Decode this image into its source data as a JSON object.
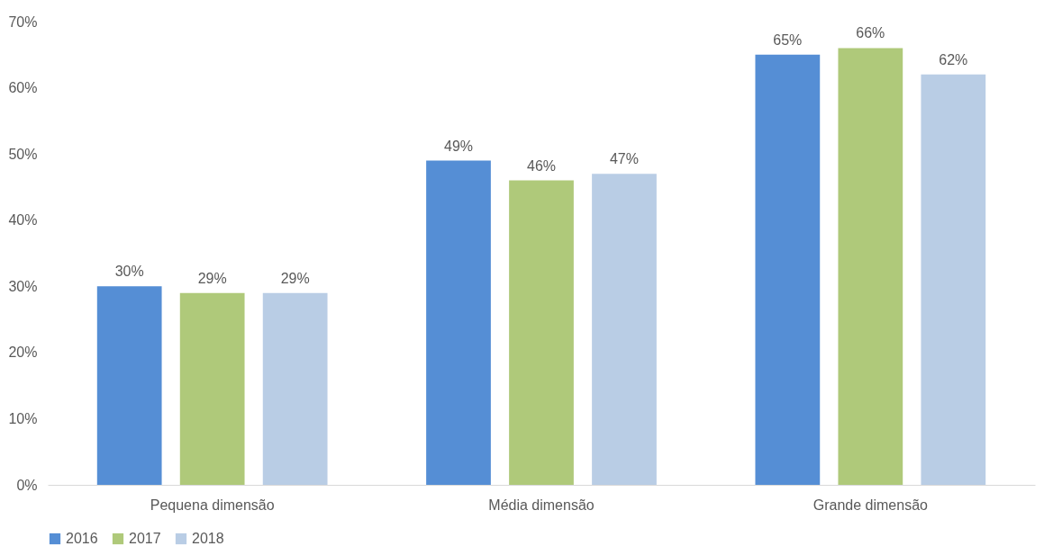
{
  "chart_data": {
    "type": "bar",
    "categories": [
      "Pequena dimensão",
      "Média dimensão",
      "Grande dimensão"
    ],
    "series": [
      {
        "name": "2016",
        "color": "#558ed5",
        "values": [
          30,
          49,
          65
        ]
      },
      {
        "name": "2017",
        "color": "#afc97a",
        "values": [
          29,
          46,
          66
        ]
      },
      {
        "name": "2018",
        "color": "#b9cde5",
        "values": [
          29,
          47,
          62
        ]
      }
    ],
    "ylim": [
      0,
      70
    ],
    "yticks": [
      {
        "value": 0,
        "label": "0%"
      },
      {
        "value": 10,
        "label": "10%"
      },
      {
        "value": 20,
        "label": "20%"
      },
      {
        "value": 30,
        "label": "30%"
      },
      {
        "value": 40,
        "label": "40%"
      },
      {
        "value": 50,
        "label": "50%"
      },
      {
        "value": 60,
        "label": "60%"
      },
      {
        "value": 70,
        "label": "70%"
      }
    ],
    "value_labels": [
      [
        "30%",
        "49%",
        "65%"
      ],
      [
        "29%",
        "46%",
        "66%"
      ],
      [
        "29%",
        "47%",
        "62%"
      ]
    ],
    "grid": false,
    "legend": "bottom"
  }
}
